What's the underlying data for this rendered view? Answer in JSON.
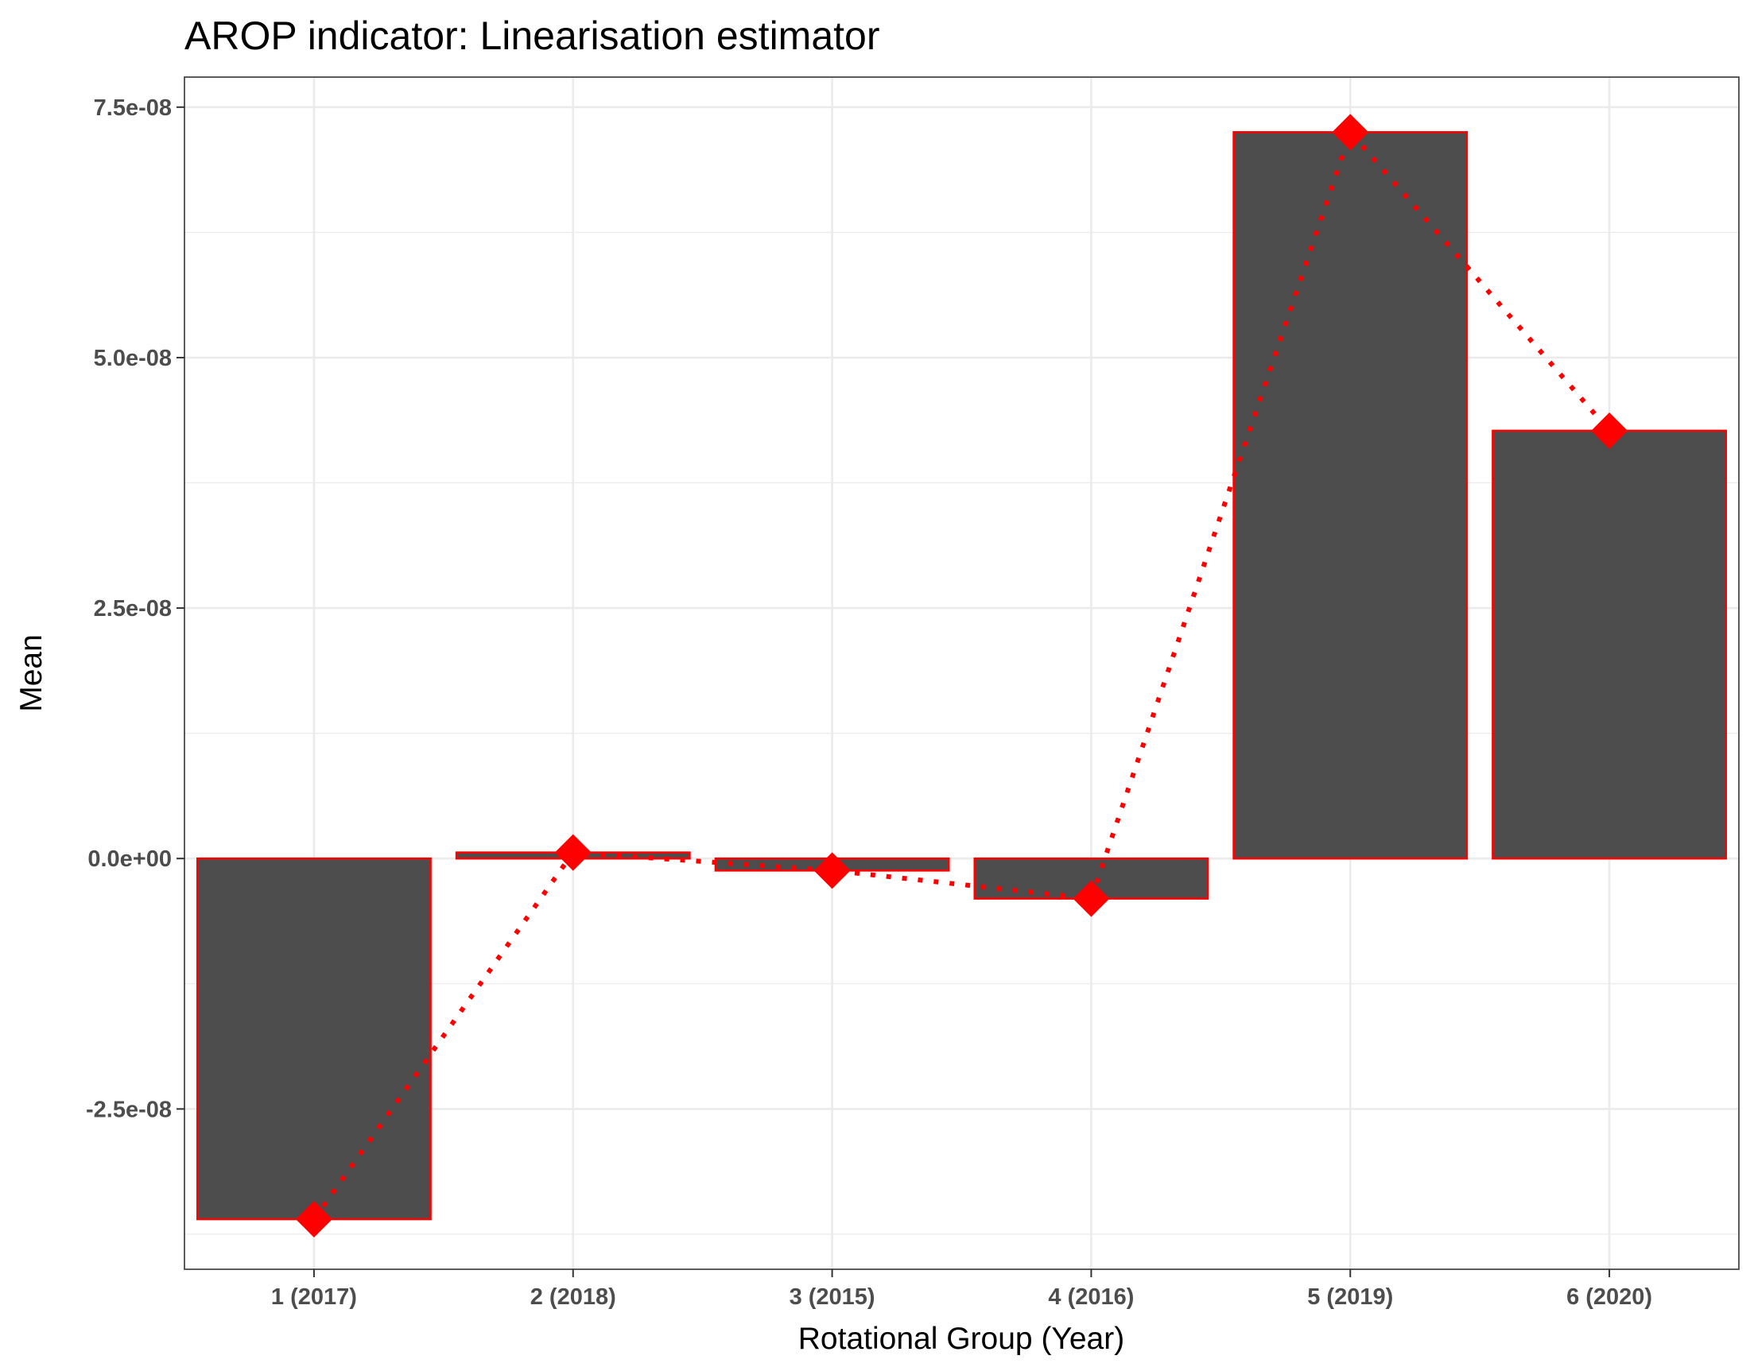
{
  "chart_data": {
    "type": "bar",
    "title": "AROP indicator: Linearisation estimator",
    "xlabel": "Rotational Group (Year)",
    "ylabel": "Mean",
    "categories": [
      "1 (2017)",
      "2 (2018)",
      "3 (2015)",
      "4 (2016)",
      "5 (2019)",
      "6 (2020)"
    ],
    "values": [
      -3.6e-08,
      6e-10,
      -1.2e-09,
      -4e-09,
      7.25e-08,
      4.27e-08
    ],
    "ylim": [
      -4.1e-08,
      7.8e-08
    ],
    "yticks": [
      -2.5e-08,
      0,
      2.5e-08,
      5e-08,
      7.5e-08
    ],
    "ytick_labels": [
      "-2.5e-08",
      "0.0e+00",
      "2.5e-08",
      "5.0e-08",
      "7.5e-08"
    ],
    "grid": true,
    "legend": "none",
    "overlay": {
      "type": "line",
      "style": "dotted",
      "marker": "diamond"
    },
    "colors": {
      "bar_fill": "#4d4d4d",
      "bar_outline": "#ff0000",
      "line": "#ff0000",
      "marker": "#ff0000",
      "grid": "#ebebeb"
    }
  }
}
